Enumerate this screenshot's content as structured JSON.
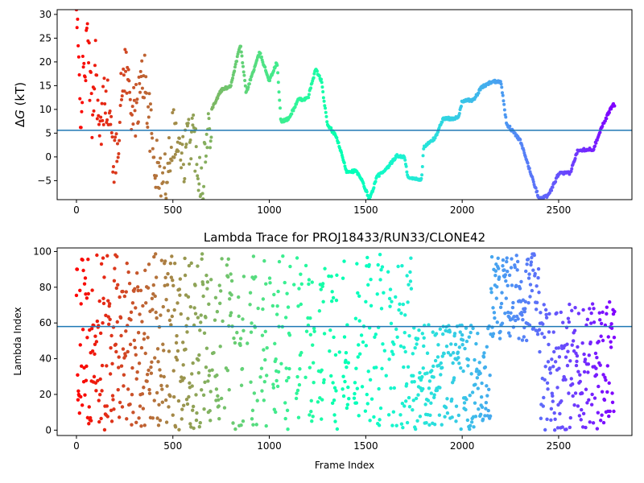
{
  "chart_data": [
    {
      "type": "scatter",
      "title": "",
      "xlabel": "",
      "ylabel": "ΔG (kT)",
      "ylabel_delta": "Δ",
      "ylabel_g": "G",
      "ylabel_unit": " (kT)",
      "xlim": [
        -100,
        2880
      ],
      "ylim": [
        -9,
        31
      ],
      "xticks": [
        0,
        500,
        1000,
        1500,
        2000,
        2500
      ],
      "yticks": [
        -5,
        0,
        5,
        10,
        15,
        20,
        25,
        30
      ],
      "hline": 5.6,
      "hline_color": "#1f77b4",
      "colormap": "rainbow (red at frame 0 → violet at later frames)",
      "grid": false,
      "trace_keypoints": [
        [
          0,
          30
        ],
        [
          20,
          10
        ],
        [
          40,
          18
        ],
        [
          60,
          25
        ],
        [
          80,
          8
        ],
        [
          100,
          22
        ],
        [
          120,
          2
        ],
        [
          150,
          15
        ],
        [
          200,
          -2
        ],
        [
          250,
          20
        ],
        [
          300,
          8
        ],
        [
          350,
          18
        ],
        [
          400,
          0
        ],
        [
          450,
          -7
        ],
        [
          500,
          6
        ],
        [
          550,
          -1
        ],
        [
          600,
          6
        ],
        [
          650,
          -5
        ],
        [
          700,
          10
        ],
        [
          750,
          14
        ],
        [
          800,
          15
        ],
        [
          850,
          23.7
        ],
        [
          880,
          13.5
        ],
        [
          900,
          16
        ],
        [
          950,
          22
        ],
        [
          1000,
          16
        ],
        [
          1040,
          20
        ],
        [
          1060,
          7.5
        ],
        [
          1100,
          8
        ],
        [
          1150,
          12
        ],
        [
          1200,
          12.3
        ],
        [
          1240,
          18.5
        ],
        [
          1270,
          16
        ],
        [
          1300,
          7
        ],
        [
          1350,
          4
        ],
        [
          1400,
          -3
        ],
        [
          1450,
          -3
        ],
        [
          1480,
          -5
        ],
        [
          1520,
          -9
        ],
        [
          1560,
          -4
        ],
        [
          1600,
          -3
        ],
        [
          1660,
          0.2
        ],
        [
          1700,
          0
        ],
        [
          1720,
          -4.5
        ],
        [
          1790,
          -4.7
        ],
        [
          1800,
          2
        ],
        [
          1860,
          4
        ],
        [
          1900,
          8
        ],
        [
          1980,
          8.2
        ],
        [
          2000,
          11.8
        ],
        [
          2060,
          12
        ],
        [
          2100,
          14.6
        ],
        [
          2150,
          15.8
        ],
        [
          2200,
          16
        ],
        [
          2230,
          7
        ],
        [
          2300,
          3.5
        ],
        [
          2360,
          -4
        ],
        [
          2400,
          -9
        ],
        [
          2450,
          -8
        ],
        [
          2500,
          -3.5
        ],
        [
          2560,
          -3.4
        ],
        [
          2600,
          1.5
        ],
        [
          2680,
          1.6
        ],
        [
          2720,
          6
        ],
        [
          2780,
          11
        ]
      ]
    },
    {
      "type": "scatter",
      "title": "Lambda Trace for PROJ18433/RUN33/CLONE42",
      "xlabel": "Frame Index",
      "ylabel": "Lambda Index",
      "xlim": [
        -100,
        2880
      ],
      "ylim": [
        -3,
        102
      ],
      "xticks": [
        0,
        500,
        1000,
        1500,
        2000,
        2500
      ],
      "yticks": [
        0,
        20,
        40,
        60,
        80,
        100
      ],
      "hline": 58,
      "hline_color": "#1f77b4",
      "colormap": "rainbow (red at frame 0 → violet at later frames)",
      "grid": false,
      "density_regions": [
        {
          "frames": [
            0,
            700
          ],
          "lambda_range": [
            0,
            99
          ],
          "pattern": "uniform scatter"
        },
        {
          "frames": [
            700,
            1250
          ],
          "lambda_range": [
            0,
            99
          ],
          "pattern": "vertical streaks"
        },
        {
          "frames": [
            1250,
            1700
          ],
          "lambda_range": [
            0,
            99
          ],
          "pattern": "clusters near 60-99"
        },
        {
          "frames": [
            1740,
            2150
          ],
          "lambda_range": [
            0,
            60
          ],
          "pattern": "dense low lambda"
        },
        {
          "frames": [
            2150,
            2400
          ],
          "lambda_range": [
            55,
            99
          ],
          "pattern": "dense high lambda"
        },
        {
          "frames": [
            2400,
            2790
          ],
          "lambda_range": [
            0,
            70
          ],
          "pattern": "scattered low-mid lambda"
        }
      ]
    }
  ]
}
